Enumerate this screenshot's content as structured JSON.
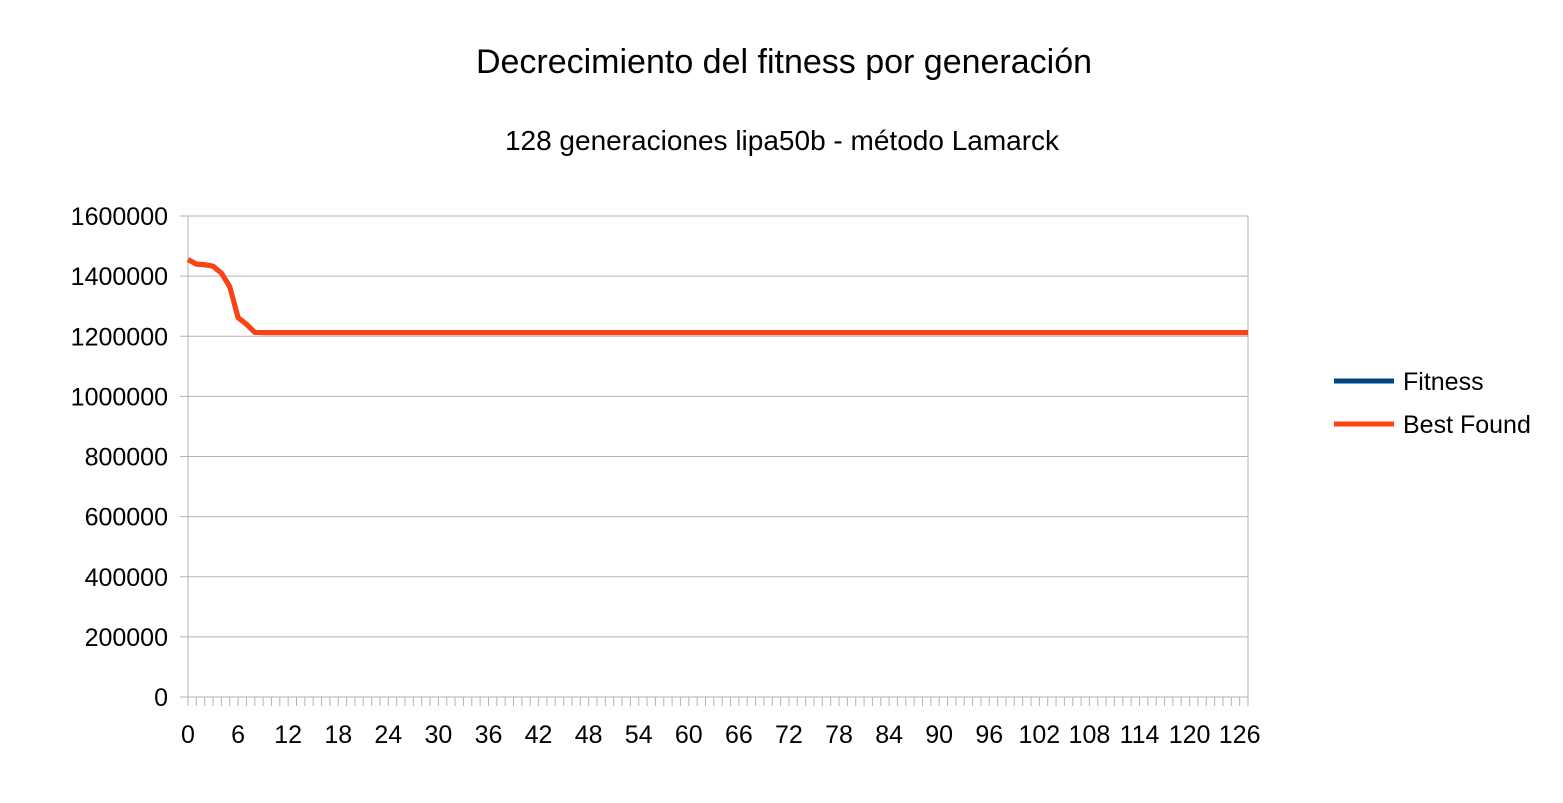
{
  "chart_data": {
    "type": "line",
    "title": "Decrecimiento del fitness por generación",
    "subtitle": "128 generaciones lipa50b - método Lamarck",
    "xlabel": "",
    "ylabel": "",
    "x_range": [
      0,
      127
    ],
    "x_tick_labels": [
      "0",
      "6",
      "12",
      "18",
      "24",
      "30",
      "36",
      "42",
      "48",
      "54",
      "60",
      "66",
      "72",
      "78",
      "84",
      "90",
      "96",
      "102",
      "108",
      "114",
      "120",
      "126"
    ],
    "ylim": [
      0,
      1600000
    ],
    "y_ticks": [
      0,
      200000,
      400000,
      600000,
      800000,
      1000000,
      1200000,
      1400000,
      1600000
    ],
    "grid": "horizontal",
    "legend_position": "right",
    "series": [
      {
        "name": "Fitness",
        "color": "#004586",
        "points": [
          [
            0,
            1455000
          ],
          [
            1,
            1440000
          ],
          [
            2,
            1438000
          ],
          [
            3,
            1433000
          ],
          [
            4,
            1410000
          ],
          [
            5,
            1365000
          ],
          [
            6,
            1262000
          ],
          [
            7,
            1240000
          ],
          [
            8,
            1213000
          ],
          [
            9,
            1212000
          ],
          [
            127,
            1212000
          ]
        ]
      },
      {
        "name": "Best Found",
        "color": "#ff420e",
        "points": [
          [
            0,
            1455000
          ],
          [
            1,
            1440000
          ],
          [
            2,
            1438000
          ],
          [
            3,
            1433000
          ],
          [
            4,
            1410000
          ],
          [
            5,
            1365000
          ],
          [
            6,
            1262000
          ],
          [
            7,
            1240000
          ],
          [
            8,
            1213000
          ],
          [
            9,
            1212000
          ],
          [
            127,
            1212000
          ]
        ]
      }
    ]
  }
}
